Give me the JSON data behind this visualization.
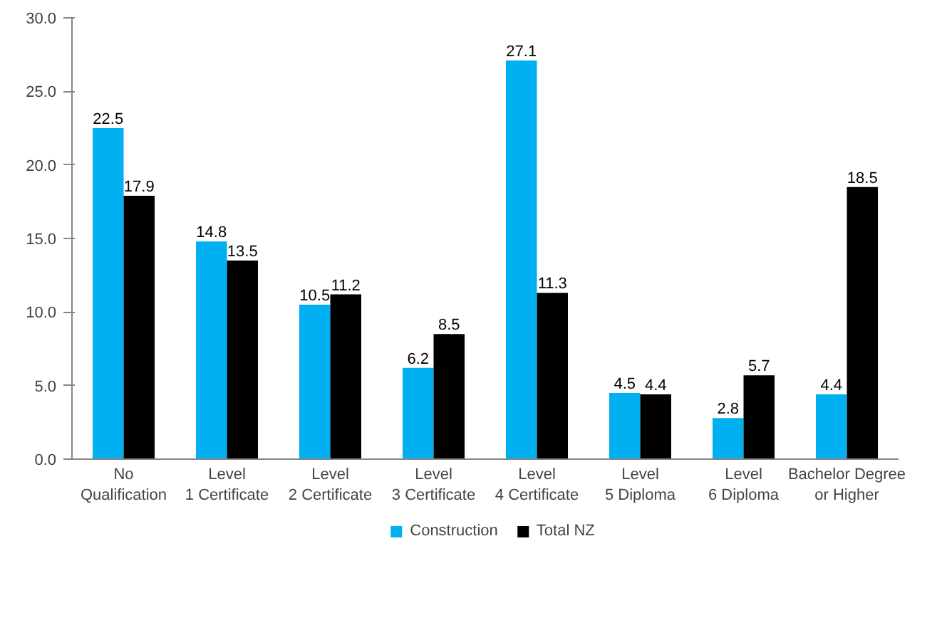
{
  "chart_data": {
    "type": "bar",
    "categories": [
      "No Qualification",
      "Level 1 Certificate",
      "Level 2 Certificate",
      "Level 3 Certificate",
      "Level 4 Certificate",
      "Level 5 Diploma",
      "Level 6 Diploma",
      "Bachelor Degree or Higher"
    ],
    "series": [
      {
        "name": "Construction",
        "color": "#00b0f0",
        "values": [
          22.5,
          14.8,
          10.5,
          6.2,
          27.1,
          4.5,
          2.8,
          4.4
        ]
      },
      {
        "name": "Total NZ",
        "color": "#000000",
        "values": [
          17.9,
          13.5,
          11.2,
          8.5,
          11.3,
          4.4,
          5.7,
          18.5
        ]
      }
    ],
    "ylim": [
      0,
      30
    ],
    "yticks": [
      {
        "value": 0,
        "label": "0.0"
      },
      {
        "value": 5,
        "label": "5.0"
      },
      {
        "value": 10,
        "label": "10.0"
      },
      {
        "value": 15,
        "label": "15.0"
      },
      {
        "value": 20,
        "label": "20.0"
      },
      {
        "value": 25,
        "label": "25.0"
      },
      {
        "value": 30,
        "label": "30.0"
      }
    ],
    "data_labels": true,
    "legend": "bottom",
    "grid": false
  }
}
